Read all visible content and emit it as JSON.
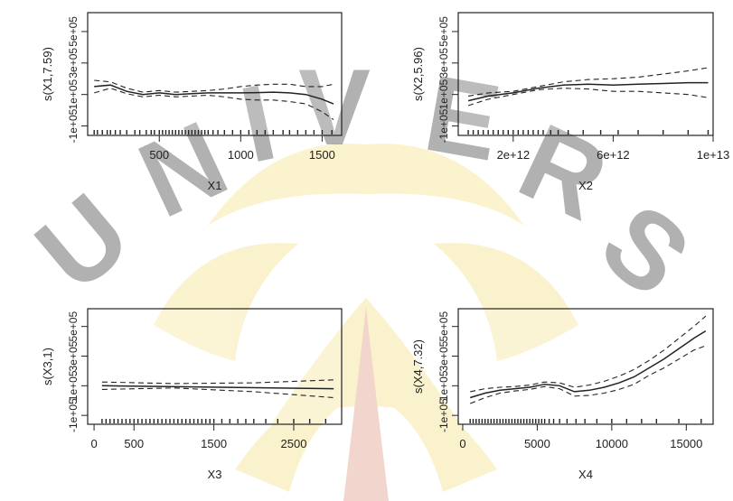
{
  "watermark": {
    "text": "UNIVERSITAS",
    "colors": {
      "gold": "#f3d35a",
      "red": "#c3452a",
      "pale": "#f7e7a6"
    }
  },
  "chart_data": [
    {
      "type": "line",
      "id": "p1",
      "xlabel": "X1",
      "ylabel": "s(X1,7.59)",
      "xlim": [
        60,
        1620
      ],
      "ylim": [
        -160000,
        620000
      ],
      "xticks": [
        500,
        1000,
        1500
      ],
      "xtick_labels": [
        "500",
        "1000",
        "1500"
      ],
      "yticks": [
        -100000,
        100000,
        300000,
        500000
      ],
      "ytick_labels": [
        "-1e+05",
        "1e+05",
        "3e+05",
        "5e+05"
      ],
      "series": [
        {
          "role": "fit",
          "style": "solid",
          "x": [
            100,
            200,
            300,
            400,
            500,
            600,
            700,
            800,
            900,
            1000,
            1100,
            1200,
            1300,
            1400,
            1500,
            1570
          ],
          "y": [
            150000,
            160000,
            120000,
            100000,
            110000,
            100000,
            105000,
            110000,
            110000,
            110000,
            112000,
            115000,
            110000,
            100000,
            70000,
            40000
          ]
        },
        {
          "role": "upper",
          "style": "dashed",
          "x": [
            100,
            200,
            300,
            400,
            500,
            600,
            700,
            800,
            900,
            1000,
            1100,
            1200,
            1300,
            1400,
            1500,
            1570
          ],
          "y": [
            190000,
            180000,
            140000,
            115000,
            125000,
            115000,
            120000,
            125000,
            135000,
            150000,
            160000,
            165000,
            165000,
            150000,
            150000,
            165000
          ]
        },
        {
          "role": "lower",
          "style": "dashed",
          "x": [
            100,
            200,
            300,
            400,
            500,
            600,
            700,
            800,
            900,
            1000,
            1100,
            1200,
            1300,
            1400,
            1500,
            1570
          ],
          "y": [
            110000,
            140000,
            105000,
            85000,
            95000,
            85000,
            90000,
            95000,
            85000,
            70000,
            65000,
            65000,
            55000,
            40000,
            -10000,
            -60000
          ]
        }
      ],
      "rug": [
        100,
        120,
        150,
        180,
        200,
        230,
        260,
        300,
        350,
        380,
        420,
        450,
        470,
        500,
        520,
        540,
        560,
        580,
        600,
        620,
        640,
        660,
        680,
        700,
        720,
        740,
        760,
        780,
        800,
        830,
        860,
        900,
        950,
        1000,
        1050,
        1100,
        1150,
        1200,
        1260,
        1300,
        1350,
        1400,
        1450,
        1500,
        1560
      ]
    },
    {
      "type": "line",
      "id": "p2",
      "xlabel": "X2",
      "ylabel": "s(X2,5.96)",
      "xlim": [
        -200000000000,
        10000000000000
      ],
      "ylim": [
        -160000,
        620000
      ],
      "xticks": [
        2000000000000,
        6000000000000,
        10000000000000
      ],
      "xtick_labels": [
        "2e+12",
        "6e+12",
        "1e+13"
      ],
      "yticks": [
        -100000,
        100000,
        300000,
        500000
      ],
      "ytick_labels": [
        "-1e+05",
        "1e+05",
        "3e+05",
        "5e+05"
      ],
      "series": [
        {
          "role": "fit",
          "style": "solid",
          "x": [
            200000000000,
            1000000000000,
            2000000000000,
            3000000000000,
            4000000000000,
            5000000000000,
            6000000000000,
            7000000000000,
            8000000000000,
            9000000000000,
            9800000000000
          ],
          "y": [
            60000,
            90000,
            110000,
            140000,
            160000,
            165000,
            160000,
            165000,
            170000,
            175000,
            175000
          ]
        },
        {
          "role": "upper",
          "style": "dashed",
          "x": [
            200000000000,
            1000000000000,
            2000000000000,
            3000000000000,
            4000000000000,
            5000000000000,
            6000000000000,
            7000000000000,
            8000000000000,
            9000000000000,
            9800000000000
          ],
          "y": [
            90000,
            110000,
            120000,
            150000,
            180000,
            195000,
            200000,
            210000,
            230000,
            250000,
            270000
          ]
        },
        {
          "role": "lower",
          "style": "dashed",
          "x": [
            200000000000,
            1000000000000,
            2000000000000,
            3000000000000,
            4000000000000,
            5000000000000,
            6000000000000,
            7000000000000,
            8000000000000,
            9000000000000,
            9800000000000
          ],
          "y": [
            30000,
            70000,
            100000,
            130000,
            140000,
            135000,
            120000,
            120000,
            110000,
            100000,
            80000
          ]
        }
      ],
      "rug": [
        200000000000,
        400000000000,
        600000000000,
        800000000000,
        1000000000000,
        1200000000000,
        1400000000000,
        1600000000000,
        1800000000000,
        2000000000000,
        2200000000000,
        2400000000000,
        2600000000000,
        2800000000000,
        3000000000000,
        3200000000000,
        3500000000000,
        3800000000000,
        4200000000000,
        4800000000000,
        5500000000000,
        6200000000000,
        7000000000000,
        8000000000000,
        9000000000000,
        9800000000000
      ]
    },
    {
      "type": "line",
      "id": "p3",
      "xlabel": "X3",
      "ylabel": "s(X3,1)",
      "xlim": [
        -80,
        3100
      ],
      "ylim": [
        -160000,
        620000
      ],
      "xticks": [
        0,
        500,
        1500,
        2500
      ],
      "xtick_labels": [
        "0",
        "500",
        "1500",
        "2500"
      ],
      "yticks": [
        -100000,
        100000,
        300000,
        500000
      ],
      "ytick_labels": [
        "-1e+05",
        "1e+05",
        "3e+05",
        "5e+05"
      ],
      "series": [
        {
          "role": "fit",
          "style": "solid",
          "x": [
            100,
            3000
          ],
          "y": [
            100000,
            80000
          ]
        },
        {
          "role": "upper",
          "style": "dashed",
          "x": [
            100,
            1000,
            2000,
            3000
          ],
          "y": [
            125000,
            115000,
            120000,
            140000
          ]
        },
        {
          "role": "lower",
          "style": "dashed",
          "x": [
            100,
            1000,
            2000,
            3000
          ],
          "y": [
            75000,
            85000,
            60000,
            20000
          ]
        }
      ],
      "rug": [
        100,
        150,
        200,
        250,
        300,
        350,
        400,
        450,
        500,
        550,
        600,
        650,
        700,
        750,
        800,
        850,
        900,
        950,
        1000,
        1050,
        1100,
        1150,
        1200,
        1250,
        1300,
        1350,
        1400,
        1450,
        1500,
        1600,
        1700,
        1800,
        1900,
        2000,
        2150,
        2300,
        2500,
        2700,
        2900
      ]
    },
    {
      "type": "line",
      "id": "p4",
      "xlabel": "X4",
      "ylabel": "s(X4,7.32)",
      "xlim": [
        -300,
        16800
      ],
      "ylim": [
        -160000,
        620000
      ],
      "xticks": [
        0,
        5000,
        10000,
        15000
      ],
      "xtick_labels": [
        "0",
        "5000",
        "10000",
        "15000"
      ],
      "yticks": [
        -100000,
        100000,
        300000,
        500000
      ],
      "ytick_labels": [
        "-1e+05",
        "1e+05",
        "3e+05",
        "5e+05"
      ],
      "series": [
        {
          "role": "fit",
          "style": "solid",
          "x": [
            500,
            1500,
            2500,
            3500,
            4500,
            5500,
            6500,
            7500,
            8500,
            9500,
            10500,
            11500,
            12500,
            13500,
            14500,
            15500,
            16300
          ],
          "y": [
            20000,
            50000,
            70000,
            80000,
            90000,
            110000,
            100000,
            60000,
            70000,
            90000,
            120000,
            160000,
            220000,
            280000,
            350000,
            420000,
            470000
          ]
        },
        {
          "role": "upper",
          "style": "dashed",
          "x": [
            500,
            1500,
            2500,
            3500,
            4500,
            5500,
            6500,
            7500,
            8500,
            9500,
            10500,
            11500,
            12500,
            13500,
            14500,
            15500,
            16300
          ],
          "y": [
            60000,
            80000,
            90000,
            95000,
            105000,
            125000,
            120000,
            90000,
            105000,
            130000,
            165000,
            210000,
            270000,
            340000,
            420000,
            500000,
            570000
          ]
        },
        {
          "role": "lower",
          "style": "dashed",
          "x": [
            500,
            1500,
            2500,
            3500,
            4500,
            5500,
            6500,
            7500,
            8500,
            9500,
            10500,
            11500,
            12500,
            13500,
            14500,
            15500,
            16300
          ],
          "y": [
            -20000,
            20000,
            50000,
            65000,
            75000,
            95000,
            80000,
            30000,
            35000,
            50000,
            75000,
            110000,
            170000,
            220000,
            280000,
            340000,
            370000
          ]
        }
      ],
      "rug": [
        500,
        700,
        900,
        1100,
        1300,
        1500,
        1700,
        1900,
        2100,
        2300,
        2500,
        2700,
        2900,
        3100,
        3300,
        3500,
        3700,
        3900,
        4100,
        4300,
        4500,
        4700,
        4900,
        5100,
        5300,
        5500,
        5800,
        6100,
        6500,
        7000,
        7600,
        8200,
        9000,
        10000,
        11000,
        12000,
        13000,
        14500,
        16000
      ]
    }
  ]
}
